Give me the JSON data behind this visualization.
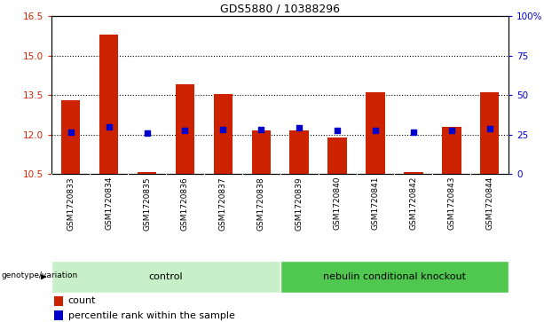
{
  "title": "GDS5880 / 10388296",
  "samples": [
    "GSM1720833",
    "GSM1720834",
    "GSM1720835",
    "GSM1720836",
    "GSM1720837",
    "GSM1720838",
    "GSM1720839",
    "GSM1720840",
    "GSM1720841",
    "GSM1720842",
    "GSM1720843",
    "GSM1720844"
  ],
  "red_bar_top": [
    13.3,
    15.8,
    10.57,
    13.9,
    13.55,
    12.15,
    12.15,
    11.9,
    13.6,
    10.57,
    12.3,
    13.6
  ],
  "blue_marker_val": [
    12.1,
    12.28,
    12.06,
    12.16,
    12.2,
    12.2,
    12.25,
    12.15,
    12.15,
    12.1,
    12.15,
    12.22
  ],
  "ymin": 10.5,
  "ymax": 16.5,
  "yticks_left": [
    10.5,
    12.0,
    13.5,
    15.0,
    16.5
  ],
  "yticks_right_labels": [
    "0",
    "25",
    "50",
    "75",
    "100%"
  ],
  "bar_color": "#cc2200",
  "marker_color": "#0000cc",
  "sample_bg_color": "#c8c8c8",
  "control_color": "#c8f0c8",
  "knockout_color": "#50c850",
  "tick_color_left": "#cc2200",
  "tick_color_right": "#0000cc",
  "gridline_vals": [
    12.0,
    13.5,
    15.0
  ],
  "control_samples": [
    0,
    5
  ],
  "knockout_samples": [
    6,
    11
  ]
}
